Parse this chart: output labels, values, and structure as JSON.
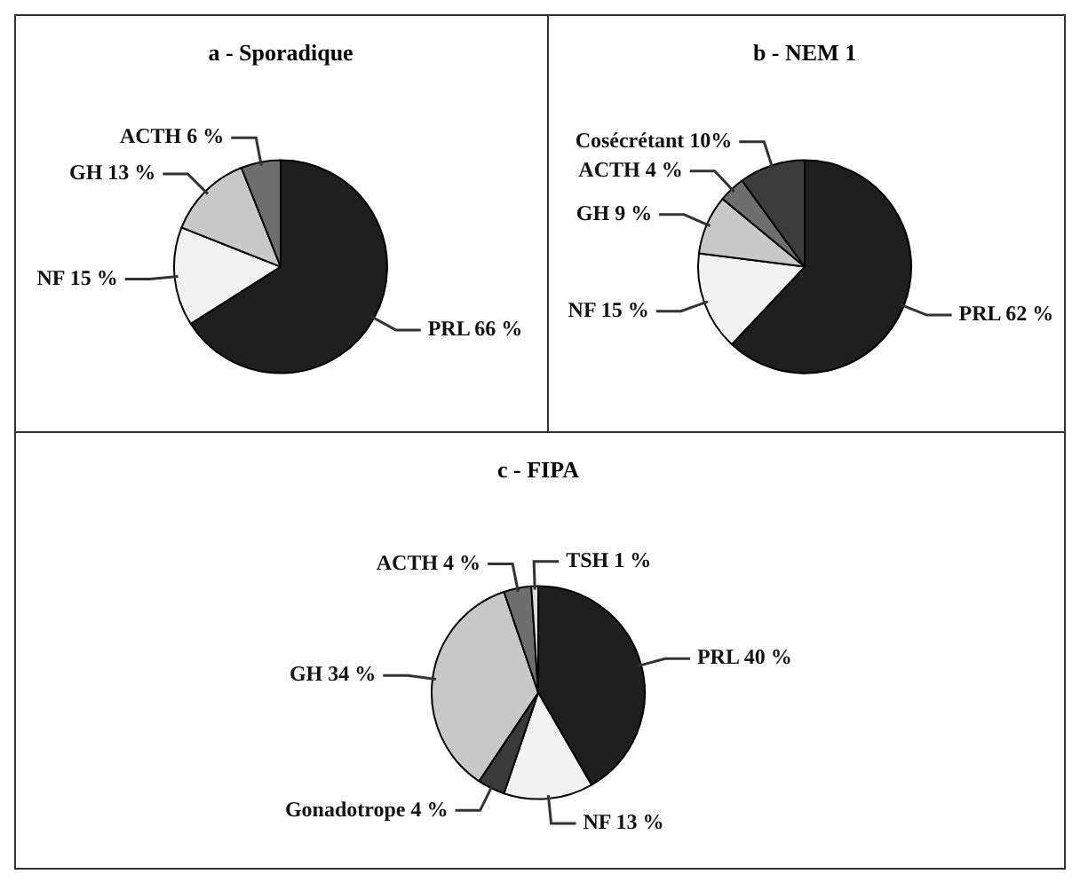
{
  "chart_data": [
    {
      "type": "pie",
      "title": "a - Sporadique",
      "categories": [
        "PRL",
        "NF",
        "GH",
        "ACTH"
      ],
      "values": [
        66,
        15,
        13,
        6
      ],
      "value_labels": [
        "66 %",
        "15 %",
        "13 %",
        "6 %"
      ],
      "colors": [
        "#1e1e1e",
        "#f2f2f2",
        "#c8c8c8",
        "#6e6e6e"
      ]
    },
    {
      "type": "pie",
      "title": "b - NEM 1",
      "categories": [
        "PRL",
        "NF",
        "GH",
        "ACTH",
        "Cosécrétant"
      ],
      "values": [
        62,
        15,
        9,
        4,
        10
      ],
      "value_labels": [
        "62 %",
        "15 %",
        "9 %",
        "4 %",
        "10%"
      ],
      "colors": [
        "#1e1e1e",
        "#f2f2f2",
        "#c8c8c8",
        "#6e6e6e",
        "#3c3c3c"
      ]
    },
    {
      "type": "pie",
      "title": "c - FIPA",
      "categories": [
        "PRL",
        "NF",
        "Gonadotrope",
        "GH",
        "ACTH",
        "TSH"
      ],
      "values": [
        40,
        13,
        4,
        34,
        4,
        1
      ],
      "value_labels": [
        "40 %",
        "13 %",
        "4 %",
        "34 %",
        "4 %",
        "1 %"
      ],
      "colors": [
        "#1e1e1e",
        "#f2f2f2",
        "#3a3a3a",
        "#c8c8c8",
        "#6e6e6e",
        "#dcdcdc"
      ]
    }
  ]
}
